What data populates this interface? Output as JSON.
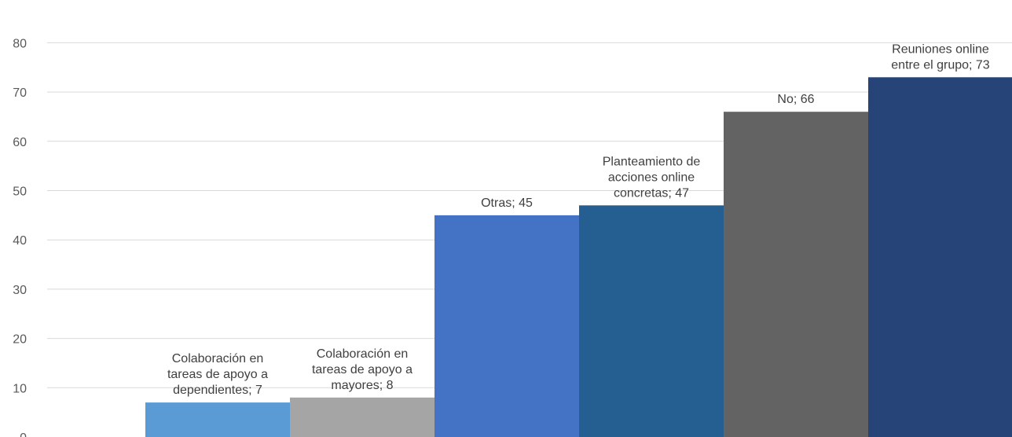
{
  "chart_data": {
    "type": "bar",
    "categories": [
      "Colaboración en tareas de apoyo a dependientes",
      "Colaboración en tareas de apoyo a mayores",
      "Otras",
      "Planteamiento de acciones online concretas",
      "No",
      "Reuniones online entre el grupo"
    ],
    "values": [
      7,
      8,
      45,
      47,
      66,
      73
    ],
    "data_labels": [
      [
        "Colaboración en",
        "tareas de apoyo a",
        "dependientes; 7"
      ],
      [
        "Colaboración en",
        "tareas de apoyo a",
        "mayores; 8"
      ],
      [
        "Otras; 45"
      ],
      [
        "Planteamiento de",
        "acciones online",
        "concretas; 47"
      ],
      [
        "No; 66"
      ],
      [
        "Reuniones online",
        "entre el grupo; 73"
      ]
    ],
    "colors": [
      "#5b9bd5",
      "#a5a5a5",
      "#4472c4",
      "#255e91",
      "#636363",
      "#264478"
    ],
    "y_ticks": [
      "0",
      "10",
      "20",
      "30",
      "40",
      "50",
      "60",
      "70",
      "80"
    ],
    "ylim": [
      0,
      80
    ],
    "grid": true,
    "legend": "none",
    "title": "",
    "xlabel": "",
    "ylabel": ""
  }
}
